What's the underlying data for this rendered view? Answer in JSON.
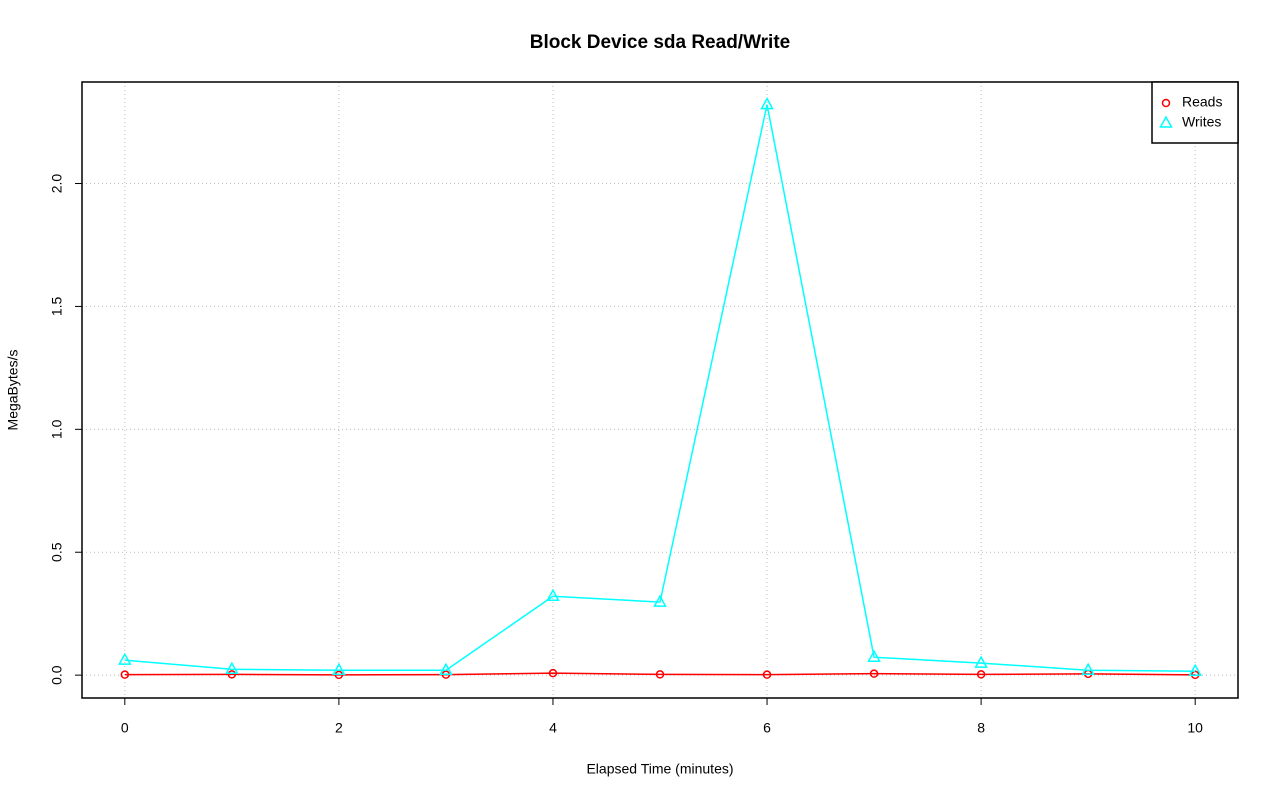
{
  "chart_data": {
    "type": "line",
    "title": "Block Device sda Read/Write",
    "x_label": "Elapsed Time (minutes)",
    "y_label": "MegaBytes/s",
    "x": [
      0,
      1,
      2,
      3,
      4,
      5,
      6,
      7,
      8,
      9,
      10
    ],
    "series": [
      {
        "name": "Reads",
        "color": "#ff0000",
        "marker": "circle",
        "values": [
          0.002,
          0.003,
          0.001,
          0.002,
          0.008,
          0.003,
          0.002,
          0.006,
          0.003,
          0.005,
          0.001
        ]
      },
      {
        "name": "Writes",
        "color": "#00ffff",
        "marker": "triangle",
        "values": [
          0.061,
          0.024,
          0.02,
          0.02,
          0.321,
          0.297,
          2.321,
          0.073,
          0.049,
          0.02,
          0.016
        ]
      }
    ],
    "xlim": [
      -0.4,
      10.4
    ],
    "ylim": [
      -0.093,
      2.413
    ],
    "xticks": [
      0,
      2,
      4,
      6,
      8,
      10
    ],
    "yticks": [
      {
        "value": 0,
        "label": "0.0"
      },
      0.5,
      {
        "value": 1,
        "label": "1.0"
      },
      1.5,
      {
        "value": 2,
        "label": "2.0"
      }
    ],
    "grid": true,
    "legend": "top-right"
  }
}
